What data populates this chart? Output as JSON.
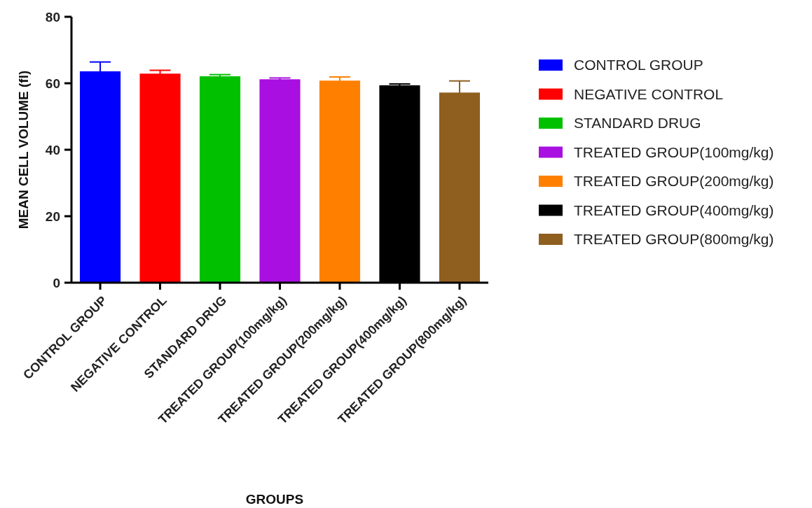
{
  "chart_data": {
    "type": "bar",
    "xlabel": "GROUPS",
    "ylabel": "MEAN CELL VOLUME (fl)",
    "categories": [
      "CONTROL GROUP",
      "NEGATIVE CONTROL",
      "STANDARD DRUG",
      "TREATED GROUP(100mg/kg)",
      "TREATED GROUP(200mg/kg)",
      "TREATED GROUP(400mg/kg)",
      "TREATED GROUP(800mg/kg)"
    ],
    "series": [
      {
        "name": "CONTROL GROUP",
        "color": "#0000ff",
        "values": [
          63.6,
          null,
          null,
          null,
          null,
          null,
          null
        ],
        "errors": [
          2.8,
          null,
          null,
          null,
          null,
          null,
          null
        ]
      },
      {
        "name": "NEGATIVE CONTROL",
        "color": "#ff0000",
        "values": [
          null,
          62.9,
          null,
          null,
          null,
          null,
          null
        ],
        "errors": [
          null,
          1.0,
          null,
          null,
          null,
          null,
          null
        ]
      },
      {
        "name": "STANDARD DRUG",
        "color": "#00c000",
        "values": [
          null,
          null,
          62.1,
          null,
          null,
          null,
          null
        ],
        "errors": [
          null,
          null,
          0.5,
          null,
          null,
          null,
          null
        ]
      },
      {
        "name": "TREATED GROUP(100mg/kg)",
        "color": "#a80fe0",
        "values": [
          null,
          null,
          null,
          61.2,
          null,
          null,
          null
        ],
        "errors": [
          null,
          null,
          null,
          0.4,
          null,
          null,
          null
        ]
      },
      {
        "name": "TREATED GROUP(200mg/kg)",
        "color": "#ff8000",
        "values": [
          null,
          null,
          null,
          null,
          60.8,
          null,
          null
        ],
        "errors": [
          null,
          null,
          null,
          null,
          1.1,
          null,
          null
        ]
      },
      {
        "name": "TREATED GROUP(400mg/kg)",
        "color": "#000000",
        "values": [
          null,
          null,
          null,
          null,
          null,
          59.4,
          null
        ],
        "errors": [
          null,
          null,
          null,
          null,
          null,
          0.4,
          null
        ]
      },
      {
        "name": "TREATED GROUP(800mg/kg)",
        "color": "#8f5f20",
        "values": [
          null,
          null,
          null,
          null,
          null,
          null,
          57.2
        ],
        "errors": [
          null,
          null,
          null,
          null,
          null,
          null,
          3.5
        ]
      }
    ],
    "ylim": [
      0,
      80
    ],
    "yticks": [
      0,
      20,
      40,
      60,
      80
    ],
    "legend": "right"
  }
}
